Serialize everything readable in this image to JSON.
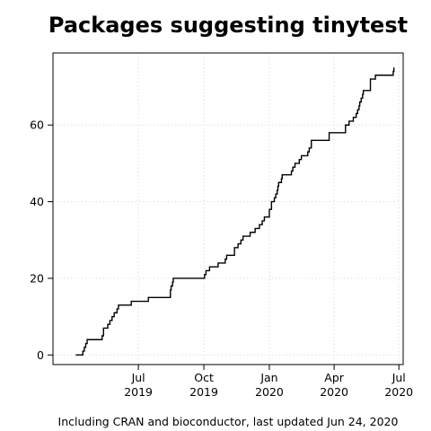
{
  "chart_data": {
    "type": "line",
    "title": "Packages suggesting tinytest",
    "caption": "Including CRAN and bioconductor, last updated Jun 24, 2020",
    "xlabel": "",
    "ylabel": "",
    "ylim": [
      -2.5,
      78.8
    ],
    "xlim": [
      "2019-03-03",
      "2020-07-07"
    ],
    "grid": true,
    "y_ticks": [
      0,
      20,
      40,
      60
    ],
    "x_ticks": [
      {
        "date": "2019-07-01",
        "line1": "Jul",
        "line2": "2019"
      },
      {
        "date": "2019-10-01",
        "line1": "Oct",
        "line2": "2019"
      },
      {
        "date": "2020-01-01",
        "line1": "Jan",
        "line2": "2020"
      },
      {
        "date": "2020-04-01",
        "line1": "Apr",
        "line2": "2020"
      },
      {
        "date": "2020-07-01",
        "line1": "Jul",
        "line2": "2020"
      }
    ],
    "series": [
      {
        "x": [
          "2019-04-04",
          "2019-04-14",
          "2019-04-16",
          "2019-04-18",
          "2019-04-20",
          "2019-04-22",
          "2019-05-11",
          "2019-05-13",
          "2019-05-19",
          "2019-05-22",
          "2019-05-25",
          "2019-05-28",
          "2019-05-30",
          "2019-06-01",
          "2019-06-03",
          "2019-06-18",
          "2019-06-21",
          "2019-07-06",
          "2019-07-15",
          "2019-08-14",
          "2019-08-15",
          "2019-08-16",
          "2019-08-18",
          "2019-08-19",
          "2019-09-19",
          "2019-10-02",
          "2019-10-04",
          "2019-10-09",
          "2019-10-10",
          "2019-10-21",
          "2019-10-23",
          "2019-10-31",
          "2019-11-02",
          "2019-11-05",
          "2019-11-13",
          "2019-11-15",
          "2019-11-18",
          "2019-11-22",
          "2019-11-25",
          "2019-11-30",
          "2019-12-05",
          "2019-12-09",
          "2019-12-12",
          "2019-12-18",
          "2019-12-22",
          "2019-12-25",
          "2020-01-01",
          "2020-01-04",
          "2020-01-05",
          "2020-01-06",
          "2020-01-08",
          "2020-01-10",
          "2020-01-11",
          "2020-01-12",
          "2020-01-13",
          "2020-01-14",
          "2020-01-18",
          "2020-01-19",
          "2020-01-23",
          "2020-01-27",
          "2020-01-31",
          "2020-02-01",
          "2020-02-03",
          "2020-02-04",
          "2020-02-06",
          "2020-02-12",
          "2020-02-15",
          "2020-02-22",
          "2020-02-24",
          "2020-02-26",
          "2020-02-29",
          "2020-03-06",
          "2020-03-08",
          "2020-03-09",
          "2020-03-10",
          "2020-03-25",
          "2020-04-07",
          "2020-04-08",
          "2020-04-17",
          "2020-04-22",
          "2020-04-28",
          "2020-04-29",
          "2020-05-02",
          "2020-05-04",
          "2020-05-06",
          "2020-05-07",
          "2020-05-09",
          "2020-05-11",
          "2020-05-12",
          "2020-05-14",
          "2020-05-22",
          "2020-05-25",
          "2020-05-27",
          "2020-05-29",
          "2020-06-01",
          "2020-06-08",
          "2020-06-20",
          "2020-06-23",
          "2020-06-24"
        ],
        "y": [
          0,
          1,
          2,
          3,
          4,
          4,
          5,
          7,
          8,
          9,
          10,
          11,
          11,
          12,
          13,
          13,
          14,
          14,
          15,
          15,
          17,
          18,
          19,
          20,
          20,
          21,
          22,
          23,
          23,
          24,
          24,
          25,
          26,
          26,
          28,
          28,
          29,
          30,
          31,
          31,
          32,
          32,
          33,
          34,
          35,
          36,
          38,
          40,
          40,
          40,
          41,
          42,
          42,
          43,
          44,
          45,
          46,
          47,
          47,
          47,
          47,
          48,
          49,
          49,
          50,
          51,
          52,
          52,
          53,
          54,
          56,
          56,
          56,
          56,
          56,
          58,
          58,
          58,
          60,
          61,
          62,
          62,
          63,
          64,
          65,
          66,
          67,
          68,
          69,
          69,
          72,
          72,
          72,
          73,
          73,
          73,
          73,
          74,
          75
        ]
      }
    ]
  }
}
